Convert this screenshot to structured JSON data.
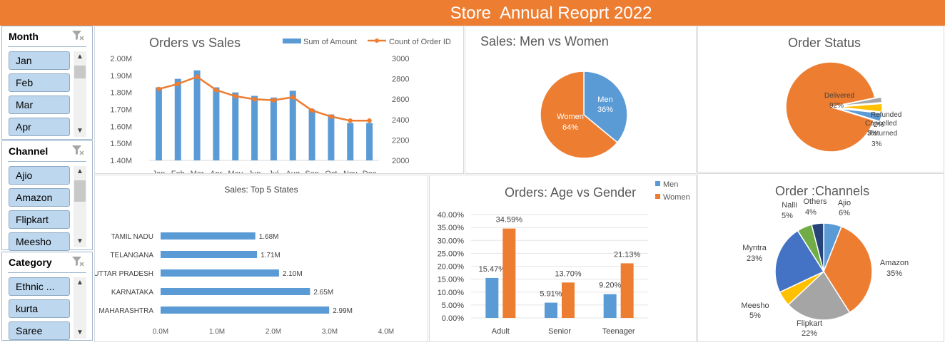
{
  "header": {
    "title": "Store  Annual Reoprt 2022"
  },
  "slicers": [
    {
      "title": "Month",
      "items": [
        "Jan",
        "Feb",
        "Mar",
        "Apr"
      ]
    },
    {
      "title": "Channel",
      "items": [
        "Ajio",
        "Amazon",
        "Flipkart",
        "Meesho"
      ]
    },
    {
      "title": "Category",
      "items": [
        "Ethnic ...",
        "kurta",
        "Saree"
      ]
    }
  ],
  "colors": {
    "header": "#ED7D31",
    "blue": "#5B9BD5",
    "orange": "#ED7D31",
    "gray": "#A5A5A5",
    "yellow": "#FFC000",
    "darkblue": "#4472C4",
    "green": "#70AD47",
    "navy": "#264478"
  },
  "chart_data": [
    {
      "type": "bar+line",
      "title": "Orders vs Sales",
      "categories": [
        "Jan",
        "Feb",
        "Mar",
        "Apr",
        "May",
        "Jun",
        "Jul",
        "Aug",
        "Sep",
        "Oct",
        "Nov",
        "Dec"
      ],
      "series": [
        {
          "name": "Sum of Amount",
          "type": "bar",
          "values": [
            1.83,
            1.88,
            1.93,
            1.83,
            1.8,
            1.78,
            1.77,
            1.81,
            1.7,
            1.67,
            1.62,
            1.62
          ]
        },
        {
          "name": "Count of Order ID",
          "type": "line",
          "values": [
            2700,
            2750,
            2820,
            2690,
            2630,
            2600,
            2590,
            2620,
            2490,
            2430,
            2390,
            2390
          ]
        }
      ],
      "y_ticks": [
        "2.00M",
        "1.90M",
        "1.80M",
        "1.70M",
        "1.60M",
        "1.50M",
        "1.40M"
      ],
      "y2_ticks": [
        "3000",
        "2800",
        "2600",
        "2400",
        "2200",
        "2000"
      ],
      "ylim": [
        1.4,
        2.0
      ],
      "y2lim": [
        2000,
        3000
      ],
      "legend": "top-right"
    },
    {
      "type": "pie",
      "title": "Sales: Men vs Women",
      "labels": [
        "Men",
        "Women"
      ],
      "values": [
        36,
        64
      ],
      "value_labels": [
        "36%",
        "64%"
      ]
    },
    {
      "type": "pie",
      "title": "Order Status",
      "labels": [
        "Delivered",
        "Refunded",
        "Cancelled",
        "Returned"
      ],
      "values": [
        92,
        2,
        3,
        3
      ],
      "value_labels": [
        "92%",
        "2%",
        "3%",
        "3%"
      ]
    },
    {
      "type": "bar",
      "orientation": "horizontal",
      "title": "Sales: Top 5 States",
      "categories": [
        "TAMIL NADU",
        "TELANGANA",
        "UTTAR PRADESH",
        "KARNATAKA",
        "MAHARASHTRA"
      ],
      "values": [
        1.68,
        1.71,
        2.1,
        2.65,
        2.99
      ],
      "value_labels": [
        "1.68M",
        "1.71M",
        "2.10M",
        "2.65M",
        "2.99M"
      ],
      "x_ticks": [
        "0.0M",
        "1.0M",
        "2.0M",
        "3.0M",
        "4.0M"
      ],
      "xlim": [
        0,
        4
      ]
    },
    {
      "type": "bar",
      "title": "Orders: Age vs Gender",
      "categories": [
        "Adult",
        "Senior",
        "Teenager"
      ],
      "series": [
        {
          "name": "Men",
          "values": [
            15.47,
            5.91,
            9.2
          ],
          "value_labels": [
            "15.47%",
            "5.91%",
            "9.20%"
          ]
        },
        {
          "name": "Women",
          "values": [
            34.59,
            13.7,
            21.13
          ],
          "value_labels": [
            "34.59%",
            "13.70%",
            "21.13%"
          ]
        }
      ],
      "y_ticks": [
        "40.00%",
        "35.00%",
        "30.00%",
        "25.00%",
        "20.00%",
        "15.00%",
        "10.00%",
        "5.00%",
        "0.00%"
      ],
      "ylim": [
        0,
        40
      ],
      "legend": "top-right"
    },
    {
      "type": "pie",
      "title": "Order :Channels",
      "labels": [
        "Ajio",
        "Amazon",
        "Flipkart",
        "Meesho",
        "Myntra",
        "Nalli",
        "Others"
      ],
      "values": [
        6,
        35,
        22,
        5,
        23,
        5,
        4
      ],
      "value_labels": [
        "6%",
        "35%",
        "22%",
        "5%",
        "23%",
        "5%",
        "4%"
      ]
    }
  ]
}
